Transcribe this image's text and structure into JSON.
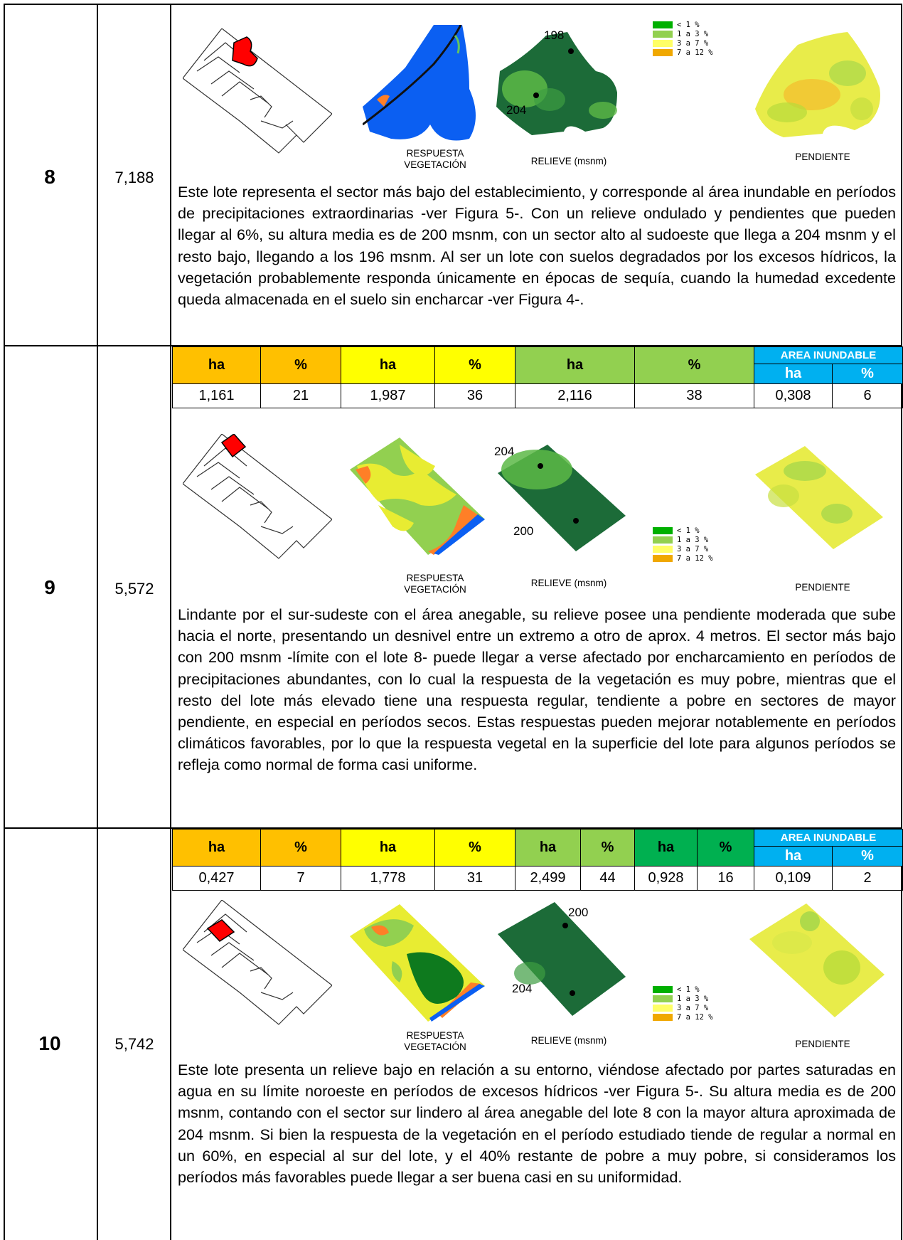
{
  "rows": [
    {
      "lot": "8",
      "area": "7,188",
      "captions": {
        "vegetation_1": "RESPUESTA",
        "vegetation_2": "VEGETACIÓN",
        "relief": "RELIEVE (msnm)",
        "slope": "PENDIENTE"
      },
      "relief_points": [
        "198",
        "204"
      ],
      "legend": [
        "< 1 %",
        "1 a 3 %",
        "3 a 7 %",
        "7 a 12 %"
      ],
      "description": "Este lote representa el sector más bajo del establecimiento, y corresponde al área inundable en períodos de precipitaciones extraordinarias -ver Figura 5-. Con un relieve ondulado y pendientes que pueden llegar al 6%, su altura media es de 200 msnm, con un sector alto al sudoeste que llega a 204 msnm y el resto bajo, llegando a los 196 msnm. Al ser un lote con suelos degradados por los excesos hídricos, la vegetación probablemente responda únicamente en épocas de sequía, cuando la humedad excedente queda almacenada en el suelo sin encharcar -ver Figura 4-."
    },
    {
      "lot": "9",
      "area": "5,572",
      "table": {
        "flood_header": "AREA INUNDABLE",
        "headers": [
          "ha",
          "%",
          "ha",
          "%",
          "ha",
          "%",
          "ha",
          "%"
        ],
        "values": [
          "1,161",
          "21",
          "1,987",
          "36",
          "2,116",
          "38",
          "0,308",
          "6"
        ]
      },
      "captions": {
        "vegetation_1": "RESPUESTA",
        "vegetation_2": "VEGETACIÓN",
        "relief": "RELIEVE (msnm)",
        "slope": "PENDIENTE"
      },
      "relief_points": [
        "204",
        "200"
      ],
      "legend": [
        "< 1 %",
        "1 a 3 %",
        "3 a 7 %",
        "7 a 12 %"
      ],
      "description": "Lindante por el sur-sudeste con el área anegable, su relieve posee una pendiente moderada que sube hacia el norte, presentando un desnivel entre un extremo a otro de aprox. 4 metros. El sector más bajo con 200 msnm -límite con el lote 8- puede llegar a verse afectado por encharcamiento en períodos de precipitaciones abundantes, con lo cual la respuesta de la vegetación es muy pobre, mientras que el resto del lote más elevado tiene una respuesta regular, tendiente a pobre en sectores de mayor pendiente, en especial en períodos secos. Estas respuestas pueden mejorar notablemente en períodos climáticos favorables, por lo que la respuesta vegetal en la superficie del lote para algunos períodos se refleja como normal de forma casi uniforme."
    },
    {
      "lot": "10",
      "area": "5,742",
      "table": {
        "flood_header": "AREA INUNDABLE",
        "headers": [
          "ha",
          "%",
          "ha",
          "%",
          "ha",
          "%",
          "ha",
          "%",
          "ha",
          "%"
        ],
        "values": [
          "0,427",
          "7",
          "1,778",
          "31",
          "2,499",
          "44",
          "0,928",
          "16",
          "0,109",
          "2"
        ]
      },
      "captions": {
        "vegetation_1": "RESPUESTA",
        "vegetation_2": "VEGETACIÓN",
        "relief": "RELIEVE (msnm)",
        "slope": "PENDIENTE"
      },
      "relief_points": [
        "200",
        "204"
      ],
      "legend": [
        "< 1 %",
        "1 a 3 %",
        "3 a 7 %",
        "7 a 12 %"
      ],
      "description": "Este lote presenta un relieve bajo en relación a su entorno, viéndose afectado por partes saturadas en agua en su límite noroeste en períodos de excesos hídricos -ver Figura 5-. Su altura media es de 200 msnm, contando con el sector sur lindero al área anegable del lote 8 con la mayor altura aproximada de 204 msnm. Si bien la respuesta de la vegetación en el período estudiado tiende de regular a normal en un 60%, en especial al sur del lote, y el 40% restante de pobre a muy pobre, si consideramos los períodos más favorables puede llegar a ser buena casi en su uniformidad."
    }
  ],
  "colors": {
    "orange": "#ffc000",
    "yellow": "#ffff00",
    "light_green": "#92d050",
    "green": "#00b050",
    "blue": "#00b0f0"
  }
}
